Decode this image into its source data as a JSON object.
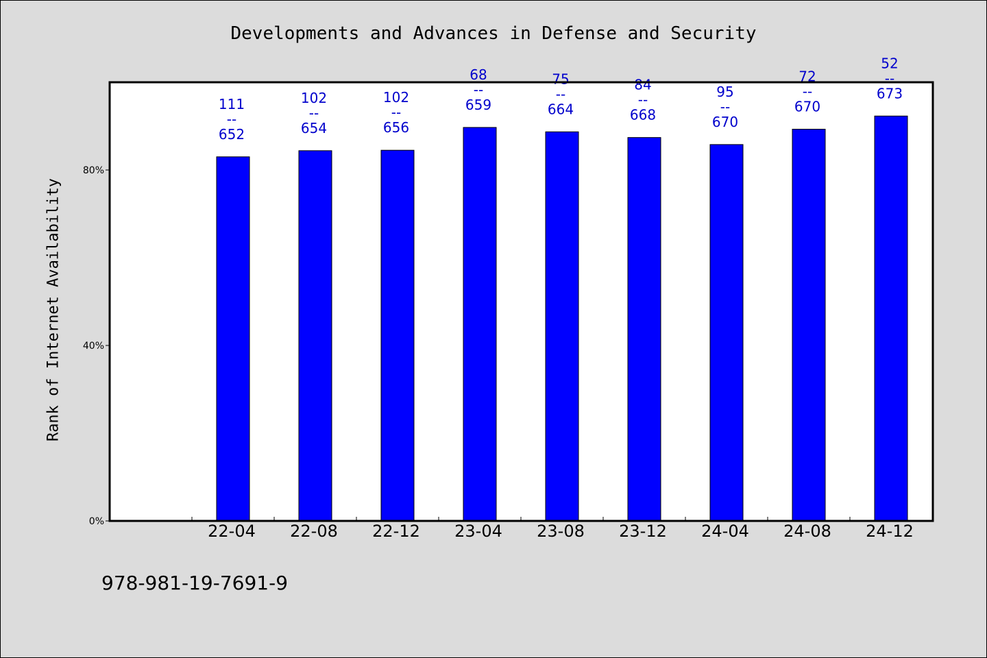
{
  "chart_data": {
    "type": "bar",
    "title": "Developments and Advances in Defense and Security",
    "ylabel": "Rank of Internet Availability",
    "xlabel": "",
    "categories": [
      "22-04",
      "22-08",
      "22-12",
      "23-04",
      "23-08",
      "23-12",
      "24-04",
      "24-08",
      "24-12"
    ],
    "values": [
      83.0,
      84.4,
      84.5,
      89.7,
      88.7,
      87.4,
      85.8,
      89.3,
      92.3
    ],
    "data_labels": [
      {
        "top": "111",
        "sep": "--",
        "bottom": "652"
      },
      {
        "top": "102",
        "sep": "--",
        "bottom": "654"
      },
      {
        "top": "102",
        "sep": "--",
        "bottom": "656"
      },
      {
        "top": "68",
        "sep": "--",
        "bottom": "659"
      },
      {
        "top": "75",
        "sep": "--",
        "bottom": "664"
      },
      {
        "top": "84",
        "sep": "--",
        "bottom": "668"
      },
      {
        "top": "95",
        "sep": "--",
        "bottom": "670"
      },
      {
        "top": "72",
        "sep": "--",
        "bottom": "670"
      },
      {
        "top": "52",
        "sep": "--",
        "bottom": "673"
      }
    ],
    "yticks": [
      0,
      40,
      80
    ],
    "ytick_labels": [
      "0%",
      "40%",
      "80%"
    ],
    "ylim": [
      0,
      100
    ],
    "grid": false,
    "legend": "none",
    "colors": {
      "bar": "#0000ff",
      "label": "#0000cc",
      "plot_bg": "#ffffff",
      "page_bg": "#dcdcdc"
    }
  },
  "footer": {
    "code": "978-981-19-7691-9"
  }
}
